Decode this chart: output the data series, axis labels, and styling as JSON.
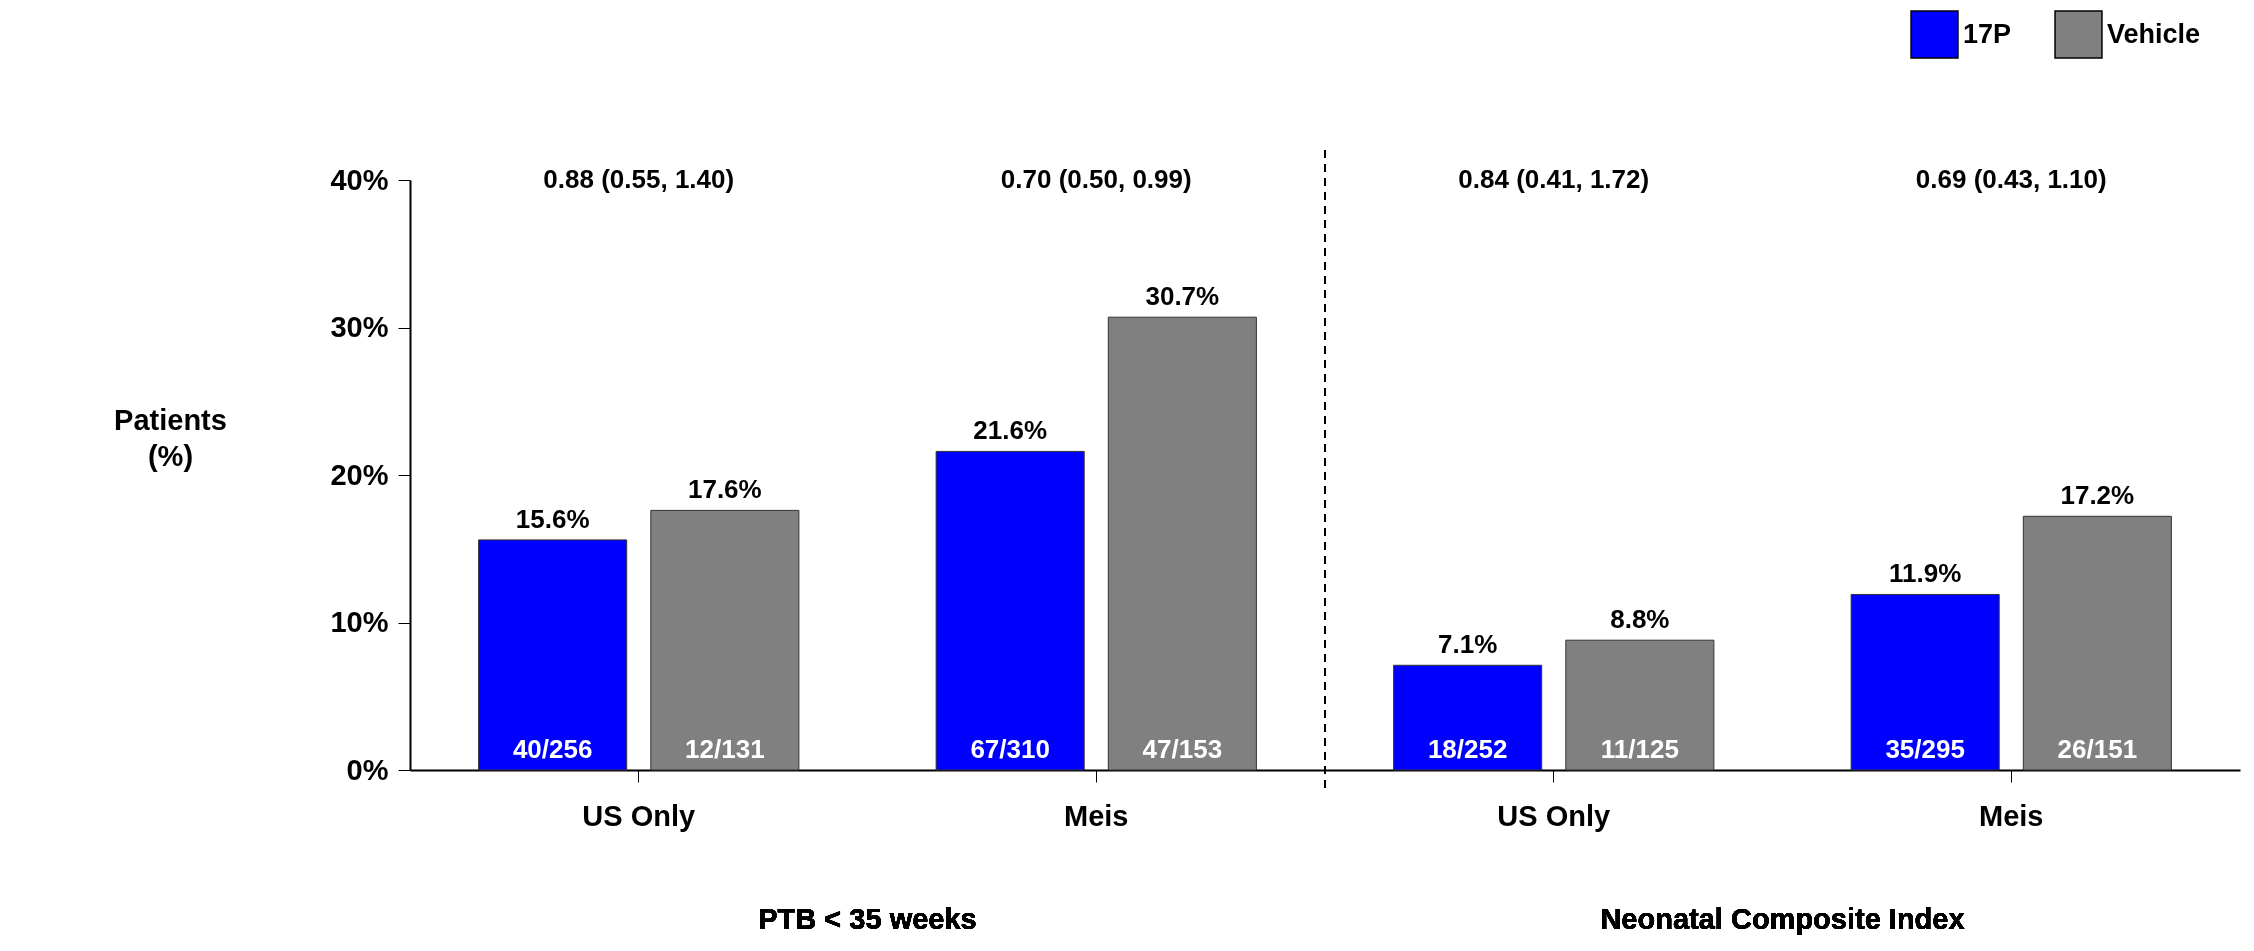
{
  "chart_data": {
    "type": "bar",
    "ylabel": "Patients (%)",
    "categories": [
      "US Only",
      "Meis",
      "US Only",
      "Meis"
    ],
    "series": [
      {
        "name": "17P",
        "color": "#0000ff",
        "values": [
          15.6,
          21.6,
          7.1,
          11.9
        ],
        "value_labels": [
          "15.6%",
          "21.6%",
          "7.1%",
          "11.9%"
        ]
      },
      {
        "name": "Vehicle",
        "color": "#808080",
        "values": [
          17.6,
          30.7,
          8.8,
          17.2
        ],
        "value_labels": [
          "17.6%",
          "30.7%",
          "8.8%",
          "17.2%"
        ]
      }
    ],
    "ylim": [
      0,
      40
    ],
    "yticks": [
      {
        "value": 0,
        "label": "0%"
      },
      {
        "value": 10,
        "label": "10%"
      },
      {
        "value": 20,
        "label": "20%"
      },
      {
        "value": 30,
        "label": "30%"
      },
      {
        "value": 40,
        "label": "40%"
      }
    ],
    "annotations": [
      "0.88 (0.55, 1.40)",
      "0.70 (0.50, 0.99)",
      "0.84 (0.41, 1.72)",
      "0.69 (0.43, 1.10)",
      "PTB < 35 weeks",
      "Neonatal Composite Index",
      "40/256",
      "67/310",
      "18/252",
      "35/295",
      "12/131",
      "47/153",
      "11/125",
      "26/151"
    ],
    "legend": "top right",
    "grid": false
  }
}
